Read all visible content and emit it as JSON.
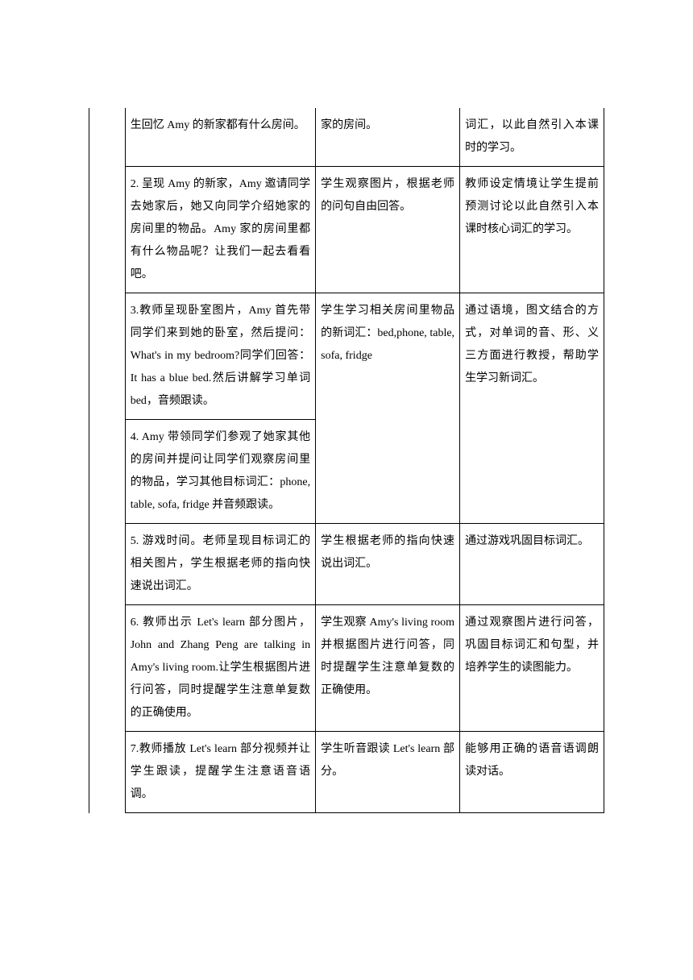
{
  "table": {
    "border_color": "#000000",
    "background_color": "#ffffff",
    "font_size": 14,
    "line_height": 2.0,
    "columns": {
      "col0_width": "7%",
      "col1_width": "37%",
      "col2_width": "28%",
      "col3_width": "28%"
    },
    "rows": [
      {
        "col1": "生回忆 Amy 的新家都有什么房间。",
        "col2": "家的房间。",
        "col3": "词汇，以此自然引入本课时的学习。"
      },
      {
        "col1": "2. 呈现 Amy 的新家，Amy 邀请同学去她家后，她又向同学介绍她家的房间里的物品。Amy 家的房间里都有什么物品呢？让我们一起去看看吧。",
        "col2": "学生观察图片，根据老师的问句自由回答。",
        "col3": "教师设定情境让学生提前预测讨论以此自然引入本课时核心词汇的学习。"
      },
      {
        "col1_a": "3.教师呈现卧室图片，Amy 首先带同学们来到她的卧室，然后提问：What's in my bedroom?同学们回答：It has a blue bed.然后讲解学习单词 bed，音频跟读。",
        "col1_b": "4. Amy 带领同学们参观了她家其他的房间并提问让同学们观察房间里的物品，学习其他目标词汇：phone, table, sofa, fridge 并音频跟读。",
        "col2": "学生学习相关房间里物品的新词汇：bed,phone, table, sofa, fridge",
        "col3": "通过语境，图文结合的方式，对单词的音、形、义三方面进行教授，帮助学生学习新词汇。"
      },
      {
        "col1": "5. 游戏时间。老师呈现目标词汇的相关图片，学生根据老师的指向快速说出词汇。",
        "col2": "学生根据老师的指向快速说出词汇。",
        "col3": "通过游戏巩固目标词汇。"
      },
      {
        "col1": "6. 教师出示 Let's learn 部分图片，John and Zhang Peng are talking in Amy's living room.让学生根据图片进行问答，同时提醒学生注意单复数的正确使用。",
        "col2": "学生观察 Amy's living room 并根据图片进行问答，同时提醒学生注意单复数的正确使用。",
        "col3": "通过观察图片进行问答，巩固目标词汇和句型，并培养学生的读图能力。"
      },
      {
        "col1": "7.教师播放 Let's learn 部分视频并让学生跟读，提醒学生注意语音语调。",
        "col2": "学生听音跟读 Let's learn 部分。",
        "col3": "能够用正确的语音语调朗读对话。"
      }
    ]
  }
}
